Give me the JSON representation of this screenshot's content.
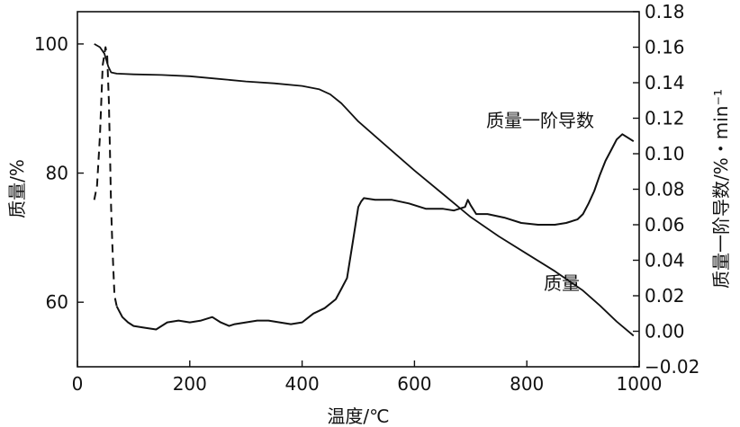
{
  "chart_data": {
    "type": "line",
    "xlabel": "温度/℃",
    "ylabel_left": "质量/%",
    "ylabel_right": "质量一阶导数/%・min⁻¹",
    "xlim": [
      0,
      1000
    ],
    "ylim_left": [
      50,
      105
    ],
    "ylim_right": [
      -0.02,
      0.18
    ],
    "x_ticks": [
      0,
      200,
      400,
      600,
      800,
      1000
    ],
    "y_ticks_left": [
      60,
      80,
      100
    ],
    "y_ticks_right": [
      -0.02,
      0.0,
      0.02,
      0.04,
      0.06,
      0.08,
      0.1,
      0.12,
      0.14,
      0.16,
      0.18
    ],
    "y_tick_labels_right": [
      "−0.02",
      "0.00",
      "0.02",
      "0.04",
      "0.06",
      "0.08",
      "0.10",
      "0.12",
      "0.14",
      "0.16",
      "0.18"
    ],
    "grid": false,
    "legend": "none",
    "annotations": [
      {
        "text": "质量一阶导数",
        "series": "质量一阶导数"
      },
      {
        "text": "质量",
        "series": "质量"
      }
    ],
    "series": [
      {
        "name": "质量",
        "axis": "left",
        "x": [
          30,
          40,
          48,
          55,
          60,
          70,
          100,
          150,
          200,
          250,
          300,
          350,
          400,
          430,
          450,
          470,
          500,
          550,
          600,
          650,
          700,
          750,
          800,
          850,
          900,
          930,
          960,
          990
        ],
        "y": [
          100.0,
          99.5,
          98.5,
          96.5,
          95.6,
          95.4,
          95.3,
          95.2,
          95.0,
          94.6,
          94.2,
          93.9,
          93.5,
          93.0,
          92.2,
          90.8,
          88.0,
          84.2,
          80.4,
          76.8,
          73.2,
          70.2,
          67.5,
          64.8,
          61.8,
          59.5,
          57.0,
          54.8
        ]
      },
      {
        "name": "质量一阶导数",
        "axis": "right",
        "x": [
          30,
          35,
          40,
          45,
          50,
          53,
          56,
          58,
          60,
          62,
          64,
          66,
          70,
          75,
          80,
          90,
          100,
          120,
          140,
          160,
          180,
          200,
          220,
          240,
          255,
          270,
          280,
          300,
          320,
          340,
          360,
          380,
          400,
          420,
          440,
          460,
          470,
          480,
          490,
          500,
          505,
          510,
          530,
          560,
          590,
          620,
          650,
          670,
          680,
          690,
          695,
          700,
          710,
          730,
          760,
          790,
          820,
          850,
          870,
          890,
          900,
          910,
          920,
          930,
          940,
          950,
          960,
          970,
          980,
          990
        ],
        "y": [
          0.074,
          0.082,
          0.11,
          0.15,
          0.16,
          0.155,
          0.13,
          0.1,
          0.07,
          0.05,
          0.035,
          0.02,
          0.014,
          0.011,
          0.008,
          0.005,
          0.003,
          0.002,
          0.001,
          0.005,
          0.006,
          0.005,
          0.006,
          0.008,
          0.005,
          0.003,
          0.004,
          0.005,
          0.006,
          0.006,
          0.005,
          0.004,
          0.005,
          0.01,
          0.013,
          0.018,
          0.024,
          0.03,
          0.05,
          0.07,
          0.073,
          0.075,
          0.074,
          0.074,
          0.072,
          0.069,
          0.069,
          0.068,
          0.069,
          0.07,
          0.074,
          0.071,
          0.066,
          0.066,
          0.064,
          0.061,
          0.06,
          0.06,
          0.061,
          0.063,
          0.066,
          0.072,
          0.079,
          0.088,
          0.096,
          0.102,
          0.108,
          0.111,
          0.109,
          0.107
        ],
        "dash_until_x": 70
      }
    ]
  }
}
